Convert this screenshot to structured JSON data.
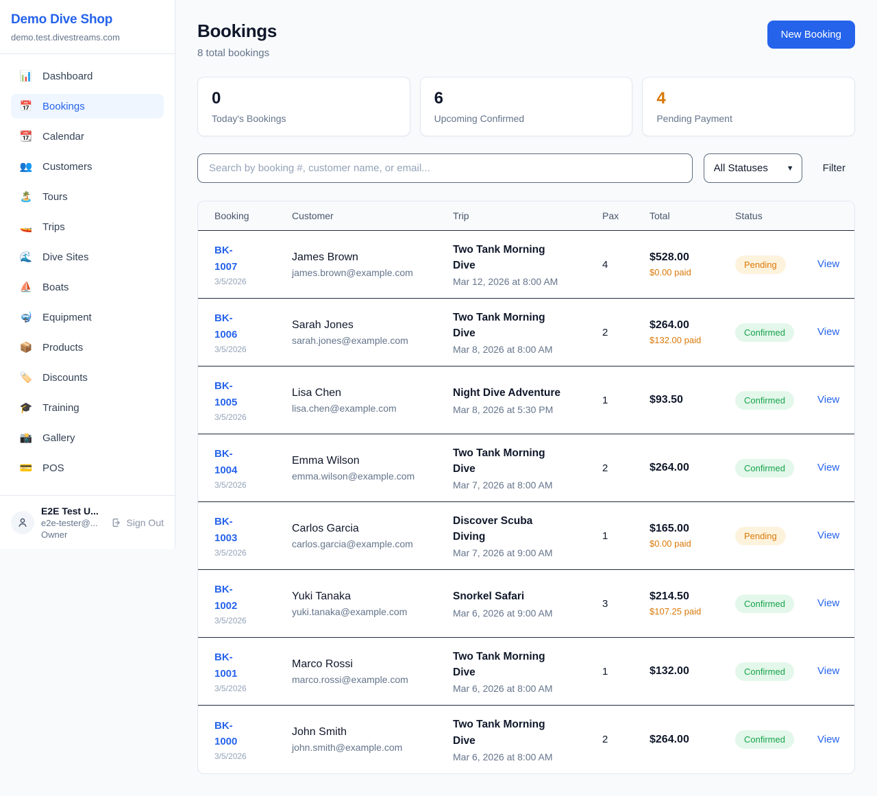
{
  "sidebar": {
    "shop_name": "Demo Dive Shop",
    "shop_domain": "demo.test.divestreams.com",
    "nav": [
      {
        "label": "Dashboard",
        "glyph": "📊",
        "icon": "bar-chart-icon",
        "active": false
      },
      {
        "label": "Bookings",
        "glyph": "📅",
        "icon": "calendar-icon",
        "active": true
      },
      {
        "label": "Calendar",
        "glyph": "📆",
        "icon": "calendar-pad-icon",
        "active": false
      },
      {
        "label": "Customers",
        "glyph": "👥",
        "icon": "people-icon",
        "active": false
      },
      {
        "label": "Tours",
        "glyph": "🏝️",
        "icon": "island-icon",
        "active": false
      },
      {
        "label": "Trips",
        "glyph": "🚤",
        "icon": "boat-trip-icon",
        "active": false
      },
      {
        "label": "Dive Sites",
        "glyph": "🌊",
        "icon": "wave-icon",
        "active": false
      },
      {
        "label": "Boats",
        "glyph": "⛵",
        "icon": "sailboat-icon",
        "active": false
      },
      {
        "label": "Equipment",
        "glyph": "🤿",
        "icon": "dive-mask-icon",
        "active": false
      },
      {
        "label": "Products",
        "glyph": "📦",
        "icon": "package-icon",
        "active": false
      },
      {
        "label": "Discounts",
        "glyph": "🏷️",
        "icon": "tag-icon",
        "active": false
      },
      {
        "label": "Training",
        "glyph": "🎓",
        "icon": "grad-cap-icon",
        "active": false
      },
      {
        "label": "Gallery",
        "glyph": "📸",
        "icon": "camera-icon",
        "active": false
      },
      {
        "label": "POS",
        "glyph": "💳",
        "icon": "credit-card-icon",
        "active": false
      }
    ],
    "user": {
      "name": "E2E Test U...",
      "email": "e2e-tester@...",
      "role": "Owner",
      "sign_out_label": "Sign Out"
    }
  },
  "header": {
    "title": "Bookings",
    "subtitle": "8 total bookings",
    "new_booking_label": "New Booking"
  },
  "stats": [
    {
      "value": "0",
      "label": "Today's Bookings",
      "accent": false
    },
    {
      "value": "6",
      "label": "Upcoming Confirmed",
      "accent": false
    },
    {
      "value": "4",
      "label": "Pending Payment",
      "accent": true
    }
  ],
  "filters": {
    "search_placeholder": "Search by booking #, customer name, or email...",
    "status_selected": "All Statuses",
    "filter_label": "Filter"
  },
  "table": {
    "columns": [
      "Booking",
      "Customer",
      "Trip",
      "Pax",
      "Total",
      "Status"
    ],
    "view_label": "View",
    "rows": [
      {
        "id": "BK-1007",
        "date": "3/5/2026",
        "customer": "James Brown",
        "email": "james.brown@example.com",
        "trip": "Two Tank Morning Dive",
        "trip_time": "Mar 12, 2026 at 8:00 AM",
        "pax": "4",
        "total": "$528.00",
        "paid": "$0.00 paid",
        "status": "Pending"
      },
      {
        "id": "BK-1006",
        "date": "3/5/2026",
        "customer": "Sarah Jones",
        "email": "sarah.jones@example.com",
        "trip": "Two Tank Morning Dive",
        "trip_time": "Mar 8, 2026 at 8:00 AM",
        "pax": "2",
        "total": "$264.00",
        "paid": "$132.00 paid",
        "status": "Confirmed"
      },
      {
        "id": "BK-1005",
        "date": "3/5/2026",
        "customer": "Lisa Chen",
        "email": "lisa.chen@example.com",
        "trip": "Night Dive Adventure",
        "trip_time": "Mar 8, 2026 at 5:30 PM",
        "pax": "1",
        "total": "$93.50",
        "paid": "",
        "status": "Confirmed"
      },
      {
        "id": "BK-1004",
        "date": "3/5/2026",
        "customer": "Emma Wilson",
        "email": "emma.wilson@example.com",
        "trip": "Two Tank Morning Dive",
        "trip_time": "Mar 7, 2026 at 8:00 AM",
        "pax": "2",
        "total": "$264.00",
        "paid": "",
        "status": "Confirmed"
      },
      {
        "id": "BK-1003",
        "date": "3/5/2026",
        "customer": "Carlos Garcia",
        "email": "carlos.garcia@example.com",
        "trip": "Discover Scuba Diving",
        "trip_time": "Mar 7, 2026 at 9:00 AM",
        "pax": "1",
        "total": "$165.00",
        "paid": "$0.00 paid",
        "status": "Pending"
      },
      {
        "id": "BK-1002",
        "date": "3/5/2026",
        "customer": "Yuki Tanaka",
        "email": "yuki.tanaka@example.com",
        "trip": "Snorkel Safari",
        "trip_time": "Mar 6, 2026 at 9:00 AM",
        "pax": "3",
        "total": "$214.50",
        "paid": "$107.25 paid",
        "status": "Confirmed"
      },
      {
        "id": "BK-1001",
        "date": "3/5/2026",
        "customer": "Marco Rossi",
        "email": "marco.rossi@example.com",
        "trip": "Two Tank Morning Dive",
        "trip_time": "Mar 6, 2026 at 8:00 AM",
        "pax": "1",
        "total": "$132.00",
        "paid": "",
        "status": "Confirmed"
      },
      {
        "id": "BK-1000",
        "date": "3/5/2026",
        "customer": "John Smith",
        "email": "john.smith@example.com",
        "trip": "Two Tank Morning Dive",
        "trip_time": "Mar 6, 2026 at 8:00 AM",
        "pax": "2",
        "total": "$264.00",
        "paid": "",
        "status": "Confirmed"
      }
    ]
  },
  "colors": {
    "accent_blue": "#2563eb",
    "pending_text": "#d97706",
    "confirmed_text": "#16a34a",
    "pending_bg": "#fdf3dd",
    "confirmed_bg": "#e3f7ea"
  }
}
